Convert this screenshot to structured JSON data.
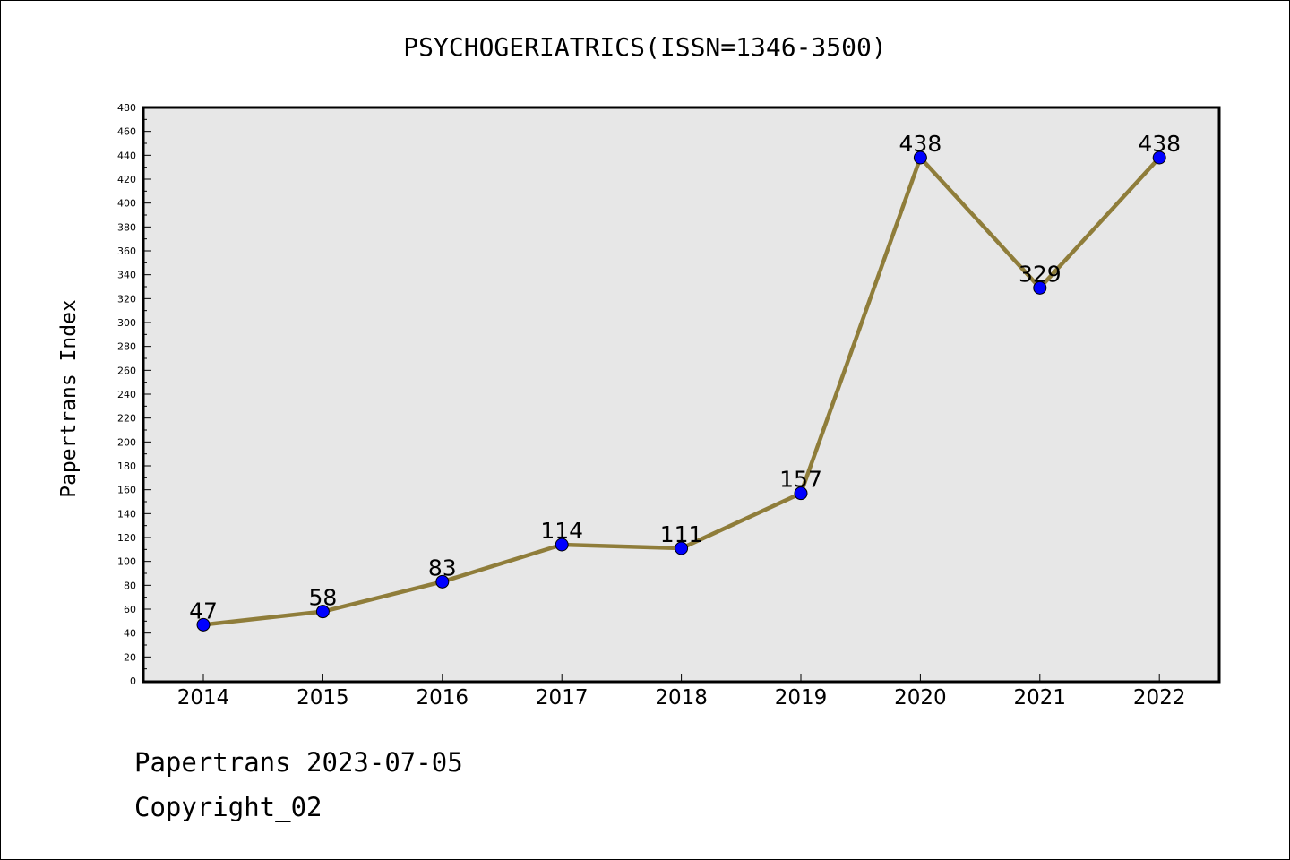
{
  "title": "PSYCHOGERIATRICS(ISSN=1346-3500)",
  "footer": {
    "line1": "Papertrans 2023-07-05",
    "line2": "Copyright_02"
  },
  "colors": {
    "plot_background": "#e7e7e7",
    "line": "#8f7d3a",
    "marker": "#0000ff"
  },
  "chart_data": {
    "type": "line",
    "title": "PSYCHOGERIATRICS(ISSN=1346-3500)",
    "xlabel": "",
    "ylabel": "Papertrans Index",
    "categories": [
      "2014",
      "2015",
      "2016",
      "2017",
      "2018",
      "2019",
      "2020",
      "2021",
      "2022"
    ],
    "series": [
      {
        "values": [
          47,
          58,
          83,
          114,
          111,
          157,
          438,
          329,
          438
        ]
      }
    ],
    "data_labels": [
      "47",
      "58",
      "83",
      "114",
      "111",
      "157",
      "438",
      "329",
      "438"
    ],
    "ylim": [
      0,
      480
    ],
    "yticks": [
      "0",
      "20",
      "40",
      "60",
      "80",
      "100",
      "120",
      "140",
      "160",
      "180",
      "200",
      "220",
      "240",
      "260",
      "280",
      "300",
      "320",
      "340",
      "360",
      "380",
      "400",
      "420",
      "440",
      "460",
      "480"
    ],
    "grid": false,
    "legend": "none"
  }
}
